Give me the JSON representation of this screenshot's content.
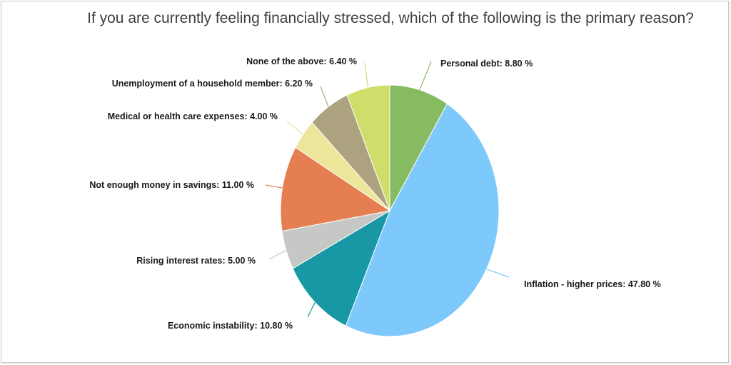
{
  "chart_data": {
    "type": "pie",
    "title": "If you are currently feeling financially stressed, which of the following is the primary reason?",
    "slices": [
      {
        "label": "Personal debt",
        "value": 8.8,
        "display": "Personal debt: 8.80 %",
        "color": "#86bb61"
      },
      {
        "label": "Inflation - higher prices",
        "value": 47.8,
        "display": "Inflation - higher prices: 47.80 %",
        "color": "#7ec9fb"
      },
      {
        "label": "Economic instability",
        "value": 10.8,
        "display": "Economic instability: 10.80 %",
        "color": "#1898a4"
      },
      {
        "label": "Rising interest rates",
        "value": 5.0,
        "display": "Rising interest rates: 5.00 %",
        "color": "#c5c8c4"
      },
      {
        "label": "Not enough money in savings",
        "value": 11.0,
        "display": "Not enough money in savings: 11.00 %",
        "color": "#e57f51"
      },
      {
        "label": "Medical or health care expenses",
        "value": 4.0,
        "display": "Medical or health care expenses: 4.00 %",
        "color": "#ece59a"
      },
      {
        "label": "Unemployment of a household member",
        "value": 6.2,
        "display": "Unemployment of a household member: 6.20 %",
        "color": "#ada27f"
      },
      {
        "label": "None of the above",
        "value": 6.4,
        "display": "None of the above: 6.40 %",
        "color": "#cfdd6a"
      }
    ]
  }
}
